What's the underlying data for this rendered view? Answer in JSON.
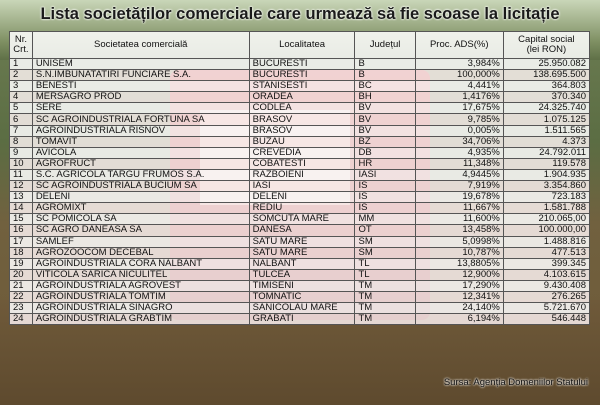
{
  "title": "Lista societăților comerciale care urmează să fie scoase la licitație",
  "table": {
    "headers": {
      "nr_line1": "Nr.",
      "nr_line2": "Crt.",
      "societate": "Societatea comercială",
      "localitate": "Localitatea",
      "judet": "Județul",
      "proc": "Proc. ADS(%)",
      "capital_line1": "Capital social",
      "capital_line2": "(lei RON)"
    },
    "rows": [
      {
        "nr": "1",
        "societate": "UNISEM",
        "localitate": "BUCURESTI",
        "judet": "B",
        "proc": "3,984%",
        "capital": "25.950.082"
      },
      {
        "nr": "2",
        "societate": "S.N.IMBUNATATIRI FUNCIARE S.A.",
        "localitate": "BUCURESTI",
        "judet": "B",
        "proc": "100,000%",
        "capital": "138.695.500"
      },
      {
        "nr": "3",
        "societate": "BENESTI",
        "localitate": "STANISESTI",
        "judet": "BC",
        "proc": "4,441%",
        "capital": "364.803"
      },
      {
        "nr": "4",
        "societate": "MERSAGRO PROD",
        "localitate": "ORADEA",
        "judet": "BH",
        "proc": "1,4176%",
        "capital": "370.340"
      },
      {
        "nr": "5",
        "societate": "SERE",
        "localitate": "CODLEA",
        "judet": "BV",
        "proc": "17,675%",
        "capital": "24.325.740"
      },
      {
        "nr": "6",
        "societate": "SC AGROINDUSTRIALA FORTUNA SA",
        "localitate": "BRASOV",
        "judet": "BV",
        "proc": "9,785%",
        "capital": "1.075.125"
      },
      {
        "nr": "7",
        "societate": "AGROINDUSTRIALA RISNOV",
        "localitate": "BRASOV",
        "judet": "BV",
        "proc": "0,005%",
        "capital": "1.511.565"
      },
      {
        "nr": "8",
        "societate": "TOMAVIT",
        "localitate": "BUZAU",
        "judet": "BZ",
        "proc": "34,706%",
        "capital": "4.373"
      },
      {
        "nr": "9",
        "societate": "AVICOLA",
        "localitate": "CREVEDIA",
        "judet": "DB",
        "proc": "4,935%",
        "capital": "24.792.011"
      },
      {
        "nr": "10",
        "societate": "AGROFRUCT",
        "localitate": "COBATESTI",
        "judet": "HR",
        "proc": "11,348%",
        "capital": "119.578"
      },
      {
        "nr": "11",
        "societate": "S.C. AGRICOLA TARGU FRUMOS S.A.",
        "localitate": "RAZBOIENI",
        "judet": "IASI",
        "proc": "4,9445%",
        "capital": "1.904.935"
      },
      {
        "nr": "12",
        "societate": "SC AGROINDUSTRIALA BUCIUM SA",
        "localitate": "IASI",
        "judet": "IS",
        "proc": "7,919%",
        "capital": "3.354.860"
      },
      {
        "nr": "13",
        "societate": "DELENI",
        "localitate": "DELENI",
        "judet": "IS",
        "proc": "19,678%",
        "capital": "723.183"
      },
      {
        "nr": "14",
        "societate": "AGROMIXT",
        "localitate": "REDIU",
        "judet": "IS",
        "proc": "11,667%",
        "capital": "1.581.788"
      },
      {
        "nr": "15",
        "societate": "SC POMICOLA SA",
        "localitate": "SOMCUTA MARE",
        "judet": "MM",
        "proc": "11,600%",
        "capital": "210.065,00"
      },
      {
        "nr": "16",
        "societate": "SC AGRO DANEASA SA",
        "localitate": "DANESA",
        "judet": "OT",
        "proc": "13,458%",
        "capital": "100.000,00"
      },
      {
        "nr": "17",
        "societate": "SAMLEF",
        "localitate": "SATU MARE",
        "judet": "SM",
        "proc": "5,0998%",
        "capital": "1.488.816"
      },
      {
        "nr": "18",
        "societate": "AGROZOOCOM DECEBAL",
        "localitate": "SATU MARE",
        "judet": "SM",
        "proc": "10,787%",
        "capital": "477.513"
      },
      {
        "nr": "19",
        "societate": "AGROINDUSTRIALA CORA NALBANT",
        "localitate": "NALBANT",
        "judet": "TL",
        "proc": "13,8805%",
        "capital": "399.345"
      },
      {
        "nr": "20",
        "societate": "VITICOLA SARICA NICULITEL",
        "localitate": "TULCEA",
        "judet": "TL",
        "proc": "12,900%",
        "capital": "4.103.615"
      },
      {
        "nr": "21",
        "societate": "AGROINDUSTRIALA AGROVEST",
        "localitate": "TIMISENI",
        "judet": "TM",
        "proc": "17,290%",
        "capital": "9.430.408"
      },
      {
        "nr": "22",
        "societate": "AGROINDUSTRIALA TOMTIM",
        "localitate": "TOMNATIC",
        "judet": "TM",
        "proc": "12,341%",
        "capital": "276.265"
      },
      {
        "nr": "23",
        "societate": "AGROINDUSTRIALA SINAGRO",
        "localitate": "SANICOLAU MARE",
        "judet": "TM",
        "proc": "24,140%",
        "capital": "5.721.670"
      },
      {
        "nr": "24",
        "societate": "AGROINDUSTRIALA GRABTIM",
        "localitate": "GRABATI",
        "judet": "TM",
        "proc": "6,194%",
        "capital": "546.448"
      }
    ]
  },
  "source": "Sursa: Agenția Domeniilor Statului"
}
